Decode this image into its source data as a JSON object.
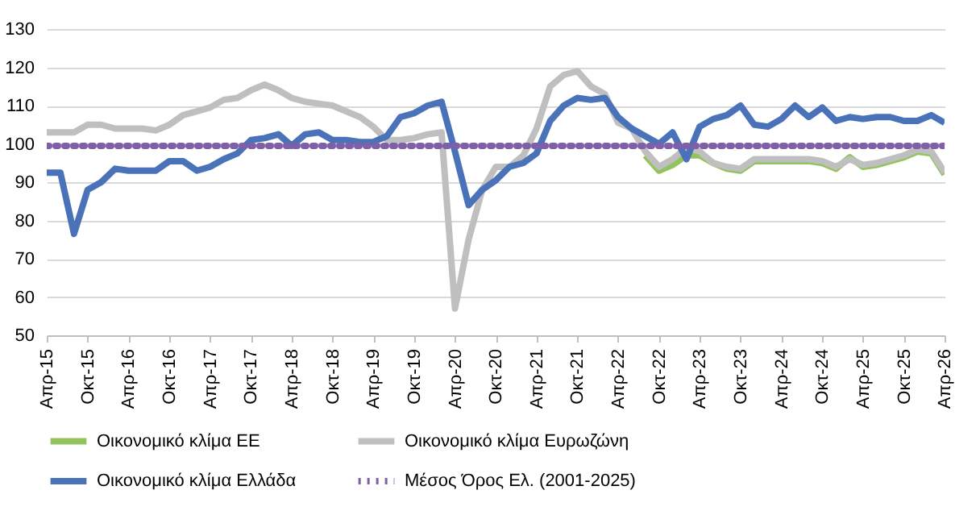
{
  "chart_data": {
    "type": "line",
    "x": [
      "2015-04",
      "2015-06",
      "2015-08",
      "2015-10",
      "2015-12",
      "2016-02",
      "2016-04",
      "2016-06",
      "2016-08",
      "2016-10",
      "2016-12",
      "2017-02",
      "2017-04",
      "2017-06",
      "2017-08",
      "2017-10",
      "2017-12",
      "2018-02",
      "2018-04",
      "2018-06",
      "2018-08",
      "2018-10",
      "2018-12",
      "2019-02",
      "2019-04",
      "2019-06",
      "2019-08",
      "2019-10",
      "2019-12",
      "2020-02",
      "2020-04",
      "2020-06",
      "2020-08",
      "2020-10",
      "2020-12",
      "2021-02",
      "2021-04",
      "2021-06",
      "2021-08",
      "2021-10",
      "2021-12",
      "2022-02",
      "2022-04",
      "2022-06",
      "2022-08",
      "2022-10",
      "2022-12",
      "2023-02",
      "2023-04",
      "2023-06",
      "2023-08",
      "2023-10",
      "2023-12",
      "2024-02",
      "2024-04",
      "2024-06",
      "2024-08",
      "2024-10",
      "2024-12",
      "2025-02",
      "2025-04",
      "2025-06",
      "2025-08",
      "2025-10",
      "2025-12",
      "2026-02",
      "2026-04"
    ],
    "series": [
      {
        "name": "Οικονομικό κλίμα ΕΕ",
        "color": "#92c35c",
        "values": [
          null,
          null,
          null,
          null,
          null,
          null,
          null,
          null,
          null,
          null,
          null,
          null,
          null,
          null,
          null,
          null,
          null,
          null,
          null,
          null,
          null,
          null,
          null,
          null,
          null,
          null,
          null,
          null,
          null,
          null,
          null,
          null,
          null,
          null,
          null,
          null,
          null,
          null,
          null,
          null,
          null,
          null,
          null,
          null,
          97,
          93,
          94.5,
          97,
          97,
          95,
          93.5,
          93,
          95.5,
          95.5,
          95.5,
          95.5,
          95.5,
          95,
          93.5,
          96.5,
          94,
          94.5,
          95.5,
          96.5,
          98,
          97.5,
          92
        ]
      },
      {
        "name": "Οικονομικό κλίμα Ευρωζώνη",
        "color": "#bfbfbf",
        "values": [
          103,
          103,
          103,
          105,
          105,
          104,
          104,
          104,
          103.5,
          105,
          107.5,
          108.5,
          109.5,
          111.5,
          112,
          114,
          115.5,
          114,
          112,
          111,
          110.5,
          110,
          108.5,
          107,
          104.5,
          101,
          101,
          101.5,
          102.5,
          103,
          57,
          75,
          88,
          94,
          94,
          97,
          104,
          115,
          118,
          119,
          115,
          113,
          105.5,
          104,
          98,
          94,
          96,
          99,
          98,
          95,
          94,
          93.5,
          96,
          96,
          96,
          96,
          96,
          95.5,
          94,
          96,
          94.5,
          95,
          96,
          97,
          98.5,
          98,
          92.5
        ]
      },
      {
        "name": "Οικονομικό κλίμα Ελλάδα",
        "color": "#4a72b8",
        "values": [
          92.5,
          92.5,
          76.5,
          88,
          90,
          93.5,
          93,
          93,
          93,
          95.5,
          95.5,
          93,
          94,
          96,
          97.5,
          101,
          101.5,
          102.5,
          99.5,
          102.5,
          103,
          101,
          101,
          100.5,
          100.5,
          102,
          107,
          108,
          110,
          111,
          98,
          84,
          88,
          90.5,
          94,
          95,
          97.5,
          106,
          110,
          112,
          111.5,
          112,
          107,
          104,
          102,
          100,
          103,
          96,
          104.5,
          106.5,
          107.5,
          110,
          105,
          104.5,
          106.5,
          110,
          107,
          109.5,
          106,
          107,
          106.5,
          107,
          107,
          106,
          106,
          107.5,
          105.5
        ]
      },
      {
        "name": "Μέσος Όρος Ελ. (2001-2025)",
        "color": "#7f5fa8",
        "line_style": "dotted",
        "x": [
          "2015-04",
          "2026-04"
        ],
        "values": [
          99.5,
          99.5
        ]
      }
    ],
    "xlim": [
      "2015-04",
      "2026-04"
    ],
    "xticks": [
      {
        "value": "2015-04",
        "label": "Απρ-15"
      },
      {
        "value": "2015-10",
        "label": "Οκτ-15"
      },
      {
        "value": "2016-04",
        "label": "Απρ-16"
      },
      {
        "value": "2016-10",
        "label": "Οκτ-16"
      },
      {
        "value": "2017-04",
        "label": "Απρ-17"
      },
      {
        "value": "2017-10",
        "label": "Οκτ-17"
      },
      {
        "value": "2018-04",
        "label": "Απρ-18"
      },
      {
        "value": "2018-10",
        "label": "Οκτ-18"
      },
      {
        "value": "2019-04",
        "label": "Απρ-19"
      },
      {
        "value": "2019-10",
        "label": "Οκτ-19"
      },
      {
        "value": "2020-04",
        "label": "Απρ-20"
      },
      {
        "value": "2020-10",
        "label": "Οκτ-20"
      },
      {
        "value": "2021-04",
        "label": "Απρ-21"
      },
      {
        "value": "2021-10",
        "label": "Οκτ-21"
      },
      {
        "value": "2022-04",
        "label": "Απρ-22"
      },
      {
        "value": "2022-10",
        "label": "Οκτ-22"
      },
      {
        "value": "2023-04",
        "label": "Απρ-23"
      },
      {
        "value": "2023-10",
        "label": "Οκτ-23"
      },
      {
        "value": "2024-04",
        "label": "Απρ-24"
      },
      {
        "value": "2024-10",
        "label": "Οκτ-24"
      },
      {
        "value": "2025-04",
        "label": "Απρ-25"
      },
      {
        "value": "2025-10",
        "label": "Οκτ-25"
      },
      {
        "value": "2026-04",
        "label": "Απρ-26"
      }
    ],
    "ylim": [
      50,
      130
    ],
    "yticks": [
      50,
      60,
      70,
      80,
      90,
      100,
      110,
      120,
      130
    ],
    "grid": "y",
    "legend": "bottom",
    "line_style": "solid"
  }
}
